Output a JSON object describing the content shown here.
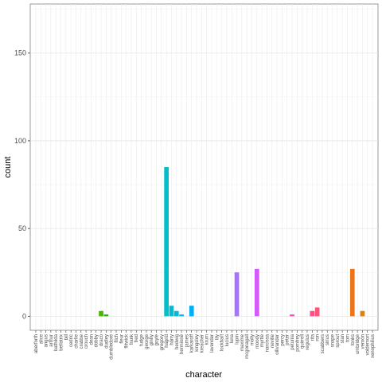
{
  "chart_data": {
    "type": "bar",
    "xlabel": "character",
    "ylabel": "count",
    "ylim": [
      -8,
      178
    ],
    "yticks": [
      0,
      50,
      100,
      150
    ],
    "grid": true,
    "legend": "none",
    "categories": [
      "aberforth",
      "alice",
      "angus",
      "arthur",
      "bathilda",
      "bellatrix",
      "bill",
      "cedric",
      "charlie",
      "crabbe",
      "crouch",
      "dean",
      "dobby",
      "draco",
      "dudley",
      "dumbledore",
      "filch",
      "fleur",
      "flitwick",
      "frank",
      "fred",
      "fudge",
      "george",
      "ginny",
      "goyle",
      "gregory",
      "hagrid",
      "harry",
      "hedwig",
      "hermione",
      "james",
      "karkaroff",
      "kingsley",
      "kreacher",
      "krum",
      "lavender",
      "lily",
      "lockhart",
      "lucius",
      "luna",
      "lupin",
      "maxime",
      "mcgonagall",
      "molly",
      "moody",
      "myrtle",
      "narcissa",
      "neville",
      "ollivander",
      "percy",
      "peter",
      "petunia",
      "pomfrey",
      "quirrell",
      "regulus",
      "rita",
      "ron",
      "scabbers",
      "sirius",
      "snape",
      "sprout",
      "stan",
      "tom",
      "tonks",
      "umbridge",
      "vernon",
      "voldemort",
      "xenophilius"
    ],
    "values": [
      0,
      0,
      0,
      0,
      0,
      0,
      0,
      0,
      0,
      0,
      0,
      0,
      0,
      3,
      1,
      0,
      0,
      0,
      0,
      0,
      0,
      0,
      0,
      0,
      0,
      0,
      85,
      6,
      3,
      1,
      0,
      6,
      0,
      0,
      0,
      0,
      0,
      0,
      0,
      0,
      25,
      0,
      0,
      0,
      27,
      0,
      0,
      0,
      0,
      0,
      0,
      1,
      0,
      0,
      0,
      3,
      5,
      0,
      0,
      0,
      0,
      0,
      0,
      27,
      0,
      3,
      0,
      0
    ],
    "colors": [
      "#F8766D",
      "#F27D52",
      "#EA8331",
      "#E38900",
      "#D89000",
      "#CE9600",
      "#C49A00",
      "#B79F00",
      "#ABA300",
      "#9CA700",
      "#8BAB00",
      "#79AF00",
      "#64B200",
      "#4AB500",
      "#1DB800",
      "#00BA38",
      "#00BC4C",
      "#00BE5D",
      "#00BF6C",
      "#00C07A",
      "#00C087",
      "#00C194",
      "#00C1A0",
      "#00C1AB",
      "#00C0B6",
      "#00BFC0",
      "#00BECA",
      "#00BCD3",
      "#00B9DC",
      "#00B6E4",
      "#00B2EC",
      "#00AEF3",
      "#00A9F9",
      "#00A4FE",
      "#009EFF",
      "#3398FF",
      "#5791FF",
      "#7189FF",
      "#8582FF",
      "#977AFF",
      "#A673FF",
      "#B46BFF",
      "#C064FF",
      "#CB5EFF",
      "#D558FF",
      "#DE53F9",
      "#E64EF1",
      "#EC4AE8",
      "#F247DE",
      "#F746D3",
      "#FA45C7",
      "#FD46BB",
      "#FF47AE",
      "#FF49A1",
      "#FF4C93",
      "#FF5085",
      "#FF5477",
      "#FE5969",
      "#FC5D5C",
      "#F9624F",
      "#F66741",
      "#F36C33",
      "#F07026",
      "#EC7519",
      "#E97A0E",
      "#E67F06",
      "#E38404",
      "#E18909"
    ]
  }
}
